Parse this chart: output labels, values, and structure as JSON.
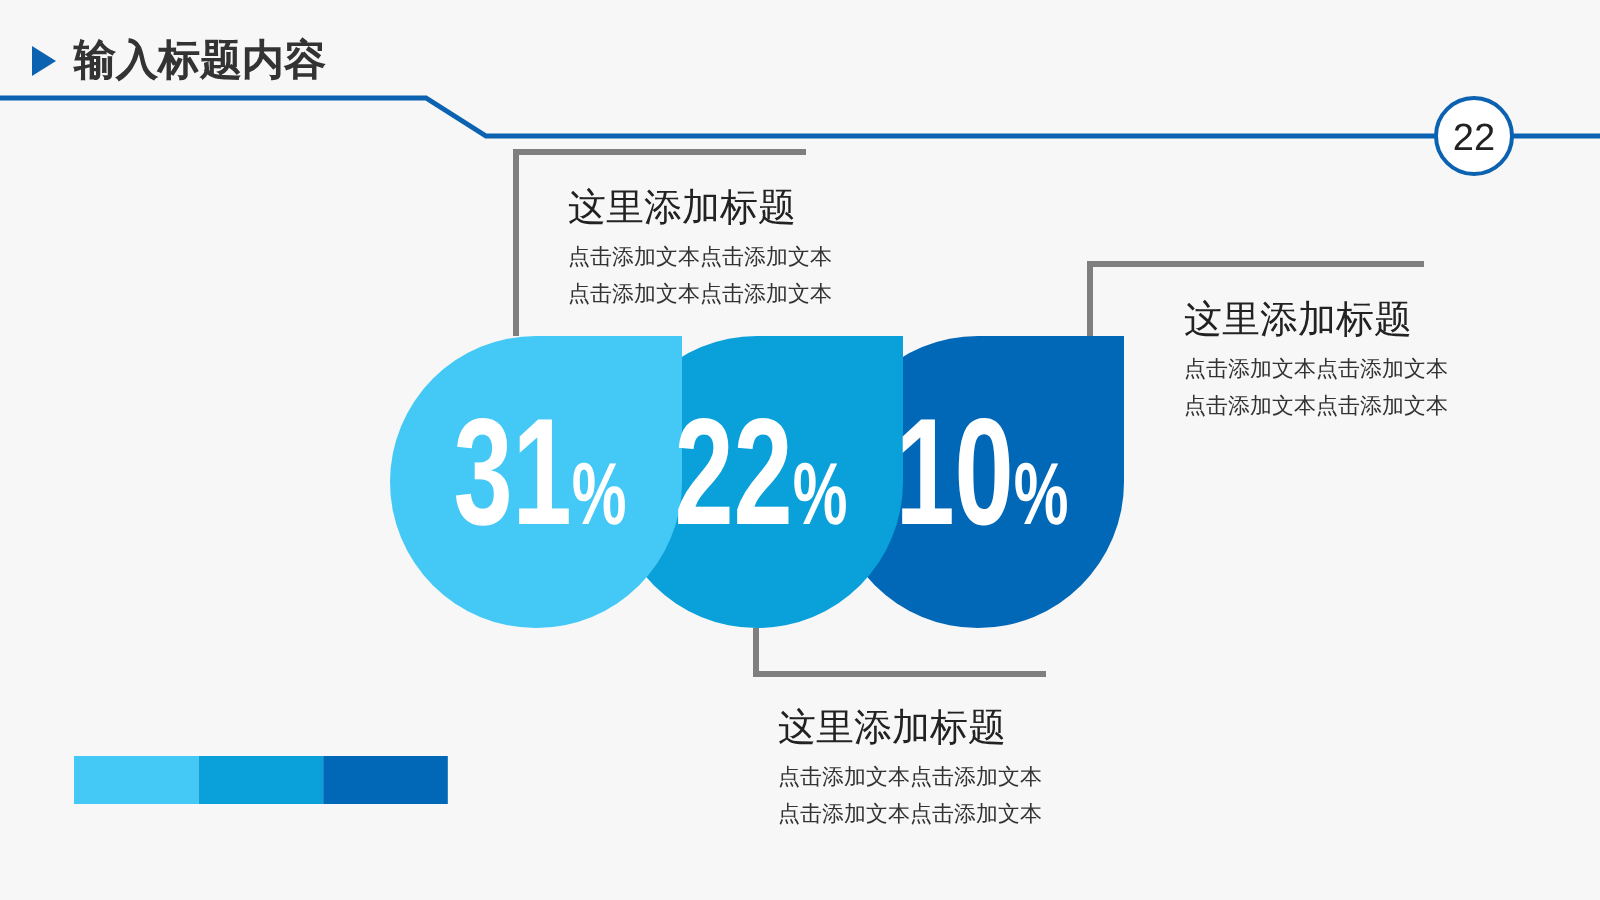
{
  "chart_data": {
    "type": "other",
    "title": "输入标题内容",
    "categories": [
      "这里添加标题",
      "这里添加标题",
      "这里添加标题"
    ],
    "values": [
      31,
      22,
      10
    ],
    "value_labels": [
      "31%",
      "22%",
      "10%"
    ],
    "colors": [
      "#44c8f5",
      "#0aa0da",
      "#0068b7"
    ],
    "annotations": [
      "22",
      "点击添加文本点击添加文本",
      "点击添加文本点击添加文本",
      "点击添加文本点击添加文本",
      "点击添加文本点击添加文本",
      "点击添加文本点击添加文本",
      "点击添加文本点击添加文本"
    ]
  }
}
